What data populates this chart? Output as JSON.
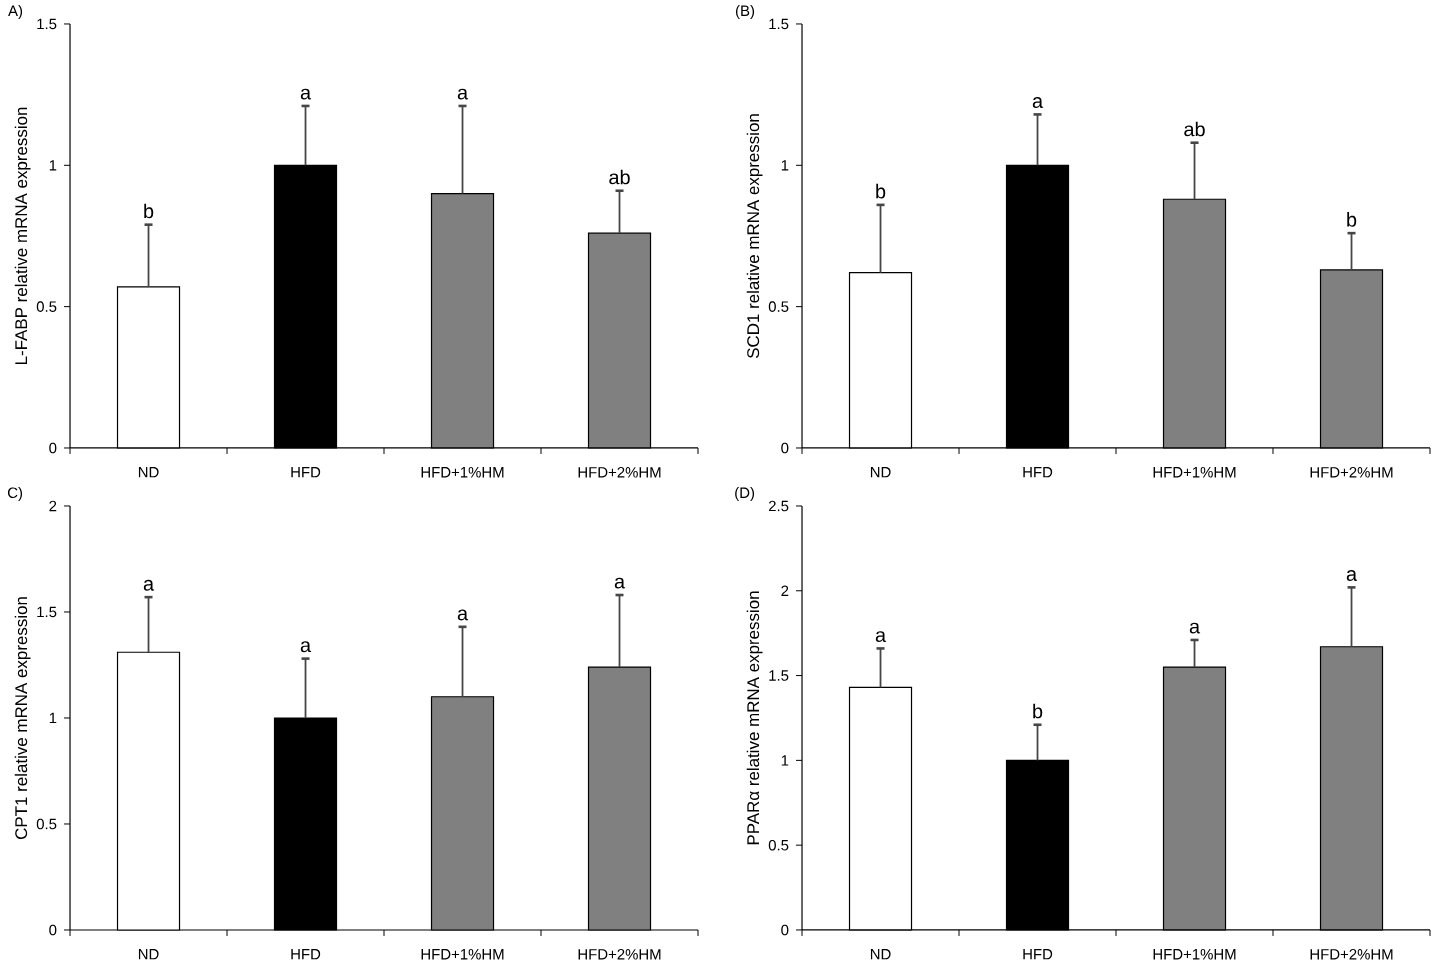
{
  "chart_data": [
    {
      "type": "bar",
      "title": "A)",
      "ylabel": "L-FABP relative mRNA expression",
      "categories": [
        "ND",
        "HFD",
        "HFD+1%HM",
        "HFD+2%HM"
      ],
      "values": [
        0.57,
        1.0,
        0.9,
        0.76
      ],
      "colors": [
        "#ffffff",
        "#000000",
        "#808080",
        "#808080"
      ],
      "errors": [
        [
          0.57,
          0.79
        ],
        [
          1.0,
          1.21
        ],
        [
          0.9,
          1.21
        ],
        [
          0.76,
          0.91
        ]
      ],
      "ylim": [
        0,
        1.5
      ],
      "yticks": [
        0,
        0.5,
        1,
        1.5
      ],
      "annotations": [
        {
          "text": "b",
          "x": "ND",
          "y": 0.79
        },
        {
          "text": "a",
          "x": "HFD",
          "y": 1.21
        },
        {
          "text": "a",
          "x": "HFD+1%HM",
          "y": 1.21
        },
        {
          "text": "ab",
          "x": "HFD+2%HM",
          "y": 0.91
        }
      ]
    },
    {
      "type": "bar",
      "title": "(B)",
      "ylabel": "SCD1 relative mRNA expression",
      "categories": [
        "ND",
        "HFD",
        "HFD+1%HM",
        "HFD+2%HM"
      ],
      "values": [
        0.62,
        1.0,
        0.88,
        0.63
      ],
      "colors": [
        "#ffffff",
        "#000000",
        "#808080",
        "#808080"
      ],
      "errors": [
        [
          0.62,
          0.86
        ],
        [
          1.0,
          1.18
        ],
        [
          0.88,
          1.08
        ],
        [
          0.63,
          0.76
        ]
      ],
      "ylim": [
        0,
        1.5
      ],
      "yticks": [
        0,
        0.5,
        1,
        1.5
      ],
      "annotations": [
        {
          "text": "b",
          "x": "ND",
          "y": 0.86
        },
        {
          "text": "a",
          "x": "HFD",
          "y": 1.18
        },
        {
          "text": "ab",
          "x": "HFD+1%HM",
          "y": 1.08
        },
        {
          "text": "b",
          "x": "HFD+2%HM",
          "y": 0.76
        }
      ]
    },
    {
      "type": "bar",
      "title": "C)",
      "ylabel": "CPT1 relative mRNA expression",
      "categories": [
        "ND",
        "HFD",
        "HFD+1%HM",
        "HFD+2%HM"
      ],
      "values": [
        1.31,
        1.0,
        1.1,
        1.24
      ],
      "colors": [
        "#ffffff",
        "#000000",
        "#808080",
        "#808080"
      ],
      "errors": [
        [
          1.31,
          1.57
        ],
        [
          1.0,
          1.28
        ],
        [
          1.1,
          1.43
        ],
        [
          1.24,
          1.58
        ]
      ],
      "ylim": [
        0,
        2
      ],
      "yticks": [
        0,
        0.5,
        1,
        1.5,
        2
      ],
      "annotations": [
        {
          "text": "a",
          "x": "ND",
          "y": 1.57
        },
        {
          "text": "a",
          "x": "HFD",
          "y": 1.28
        },
        {
          "text": "a",
          "x": "HFD+1%HM",
          "y": 1.43
        },
        {
          "text": "a",
          "x": "HFD+2%HM",
          "y": 1.58
        }
      ]
    },
    {
      "type": "bar",
      "title": "(D)",
      "ylabel": "PPARα relative mRNA expression",
      "categories": [
        "ND",
        "HFD",
        "HFD+1%HM",
        "HFD+2%HM"
      ],
      "values": [
        1.43,
        1.0,
        1.55,
        1.67
      ],
      "colors": [
        "#ffffff",
        "#000000",
        "#808080",
        "#808080"
      ],
      "errors": [
        [
          1.43,
          1.66
        ],
        [
          1.0,
          1.21
        ],
        [
          1.55,
          1.71
        ],
        [
          1.67,
          2.02
        ]
      ],
      "ylim": [
        0,
        2.5
      ],
      "yticks": [
        0,
        0.5,
        1,
        1.5,
        2,
        2.5
      ],
      "annotations": [
        {
          "text": "a",
          "x": "ND",
          "y": 1.66
        },
        {
          "text": "b",
          "x": "HFD",
          "y": 1.21
        },
        {
          "text": "a",
          "x": "HFD+1%HM",
          "y": 1.71
        },
        {
          "text": "a",
          "x": "HFD+2%HM",
          "y": 2.02
        }
      ]
    }
  ]
}
